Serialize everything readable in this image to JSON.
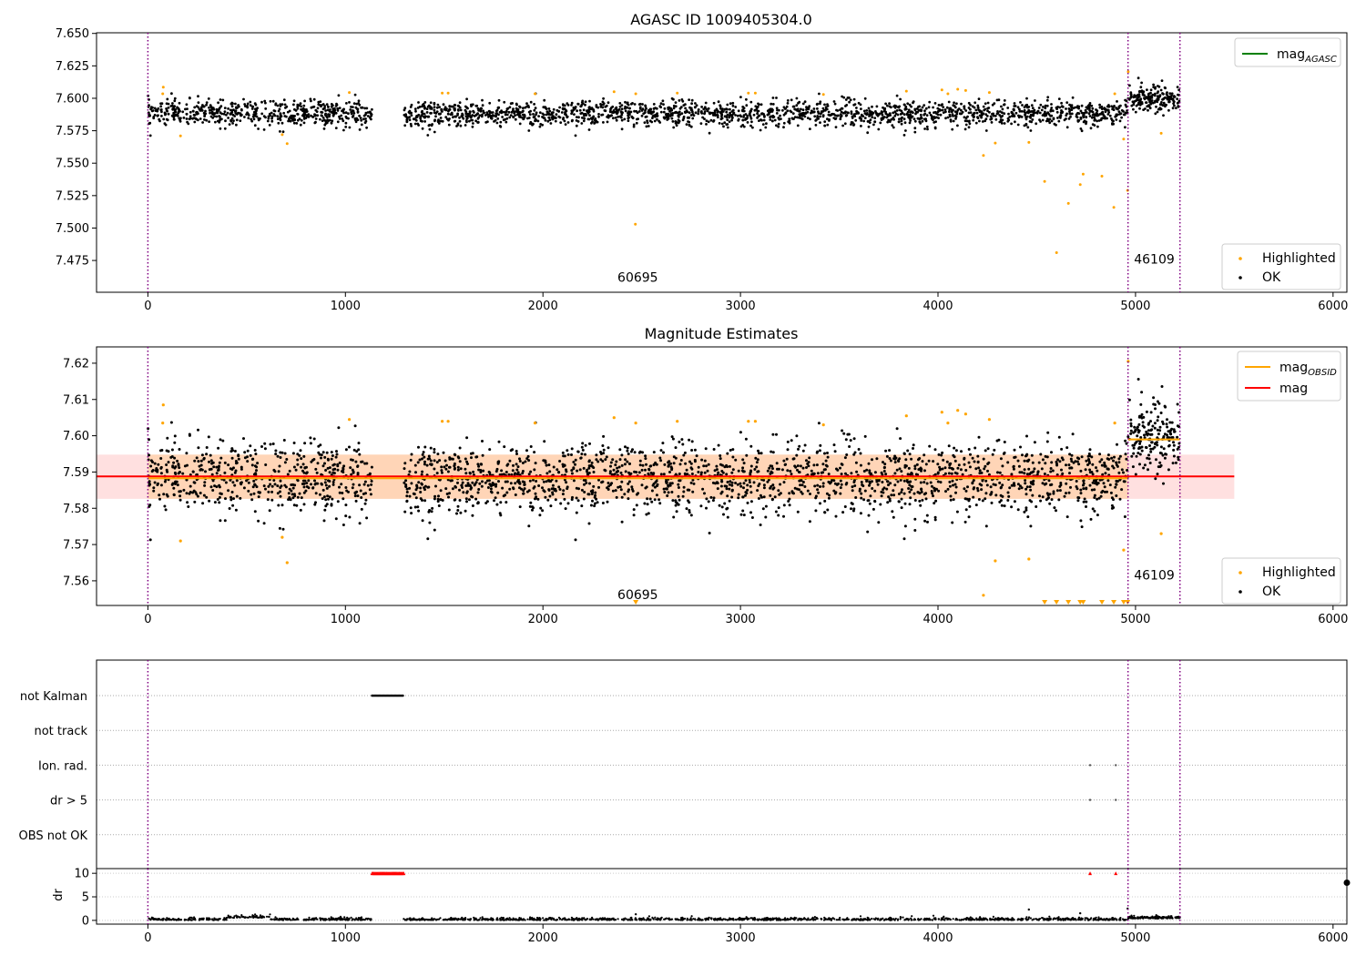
{
  "chart_data": [
    {
      "panel": "top",
      "type": "scatter",
      "title": "AGASC ID 1009405304.0",
      "xlim": [
        -260,
        6070
      ],
      "ylim": [
        7.4505,
        7.6505
      ],
      "xticks": [
        0,
        1000,
        2000,
        3000,
        4000,
        5000,
        6000
      ],
      "xtick_labels": [
        "0",
        "1000",
        "2000",
        "3000",
        "4000",
        "5000",
        "6000"
      ],
      "yticks": [
        7.475,
        7.5,
        7.525,
        7.55,
        7.575,
        7.6,
        7.625,
        7.65
      ],
      "ytick_labels": [
        "7.475",
        "7.500",
        "7.525",
        "7.550",
        "7.575",
        "7.600",
        "7.625",
        "7.650"
      ],
      "obsid_boundaries": [
        0,
        4962,
        5225
      ],
      "obsid_labels": [
        {
          "text": "60695",
          "x": 2480,
          "y": 7.4585
        },
        {
          "text": "46109",
          "x": 5095,
          "y": 7.4725
        }
      ],
      "line_legend": [
        {
          "label": "mag",
          "sub": "AGASC",
          "color": "#008000"
        }
      ],
      "point_legend": [
        {
          "label": "Highlighted",
          "color": "#FFA500"
        },
        {
          "label": "OK",
          "color": "#000000"
        }
      ],
      "ok_segments": [
        {
          "x_start": 0,
          "x_end": 1135,
          "mean": 7.5885,
          "spread": 0.013,
          "n": 560
        },
        {
          "x_start": 1295,
          "x_end": 4962,
          "mean": 7.588,
          "spread": 0.013,
          "n": 1850
        },
        {
          "x_start": 4962,
          "x_end": 5225,
          "mean": 7.6,
          "spread": 0.015,
          "n": 180
        }
      ],
      "highlighted_points": [
        [
          78,
          7.6085
        ],
        [
          75,
          7.6035
        ],
        [
          165,
          7.571
        ],
        [
          680,
          7.572
        ],
        [
          705,
          7.565
        ],
        [
          1020,
          7.6045
        ],
        [
          1490,
          7.604
        ],
        [
          1520,
          7.604
        ],
        [
          1960,
          7.6035
        ],
        [
          2360,
          7.605
        ],
        [
          2470,
          7.6035
        ],
        [
          2468,
          7.503
        ],
        [
          2680,
          7.604
        ],
        [
          3040,
          7.604
        ],
        [
          3075,
          7.604
        ],
        [
          3420,
          7.603
        ],
        [
          3840,
          7.6055
        ],
        [
          4020,
          7.6065
        ],
        [
          4050,
          7.6035
        ],
        [
          4100,
          7.607
        ],
        [
          4140,
          7.606
        ],
        [
          4230,
          7.556
        ],
        [
          4260,
          7.6045
        ],
        [
          4290,
          7.5655
        ],
        [
          4460,
          7.566
        ],
        [
          4540,
          7.536
        ],
        [
          4600,
          7.481
        ],
        [
          4660,
          7.519
        ],
        [
          4720,
          7.5335
        ],
        [
          4735,
          7.5415
        ],
        [
          4830,
          7.54
        ],
        [
          4890,
          7.516
        ],
        [
          4895,
          7.6035
        ],
        [
          4940,
          7.5685
        ],
        [
          4960,
          7.529
        ],
        [
          4963,
          7.6205
        ],
        [
          5130,
          7.573
        ]
      ]
    },
    {
      "panel": "middle",
      "type": "scatter",
      "title": "Magnitude Estimates",
      "xlim": [
        -260,
        6070
      ],
      "ylim": [
        7.5532,
        7.6245
      ],
      "xticks": [
        0,
        1000,
        2000,
        3000,
        4000,
        5000,
        6000
      ],
      "xtick_labels": [
        "0",
        "1000",
        "2000",
        "3000",
        "4000",
        "5000",
        "6000"
      ],
      "yticks": [
        7.56,
        7.57,
        7.58,
        7.59,
        7.6,
        7.61,
        7.62
      ],
      "ytick_labels": [
        "7.56",
        "7.57",
        "7.58",
        "7.59",
        "7.60",
        "7.61",
        "7.62"
      ],
      "obsid_boundaries": [
        0,
        4962,
        5225
      ],
      "obsid_labels": [
        {
          "text": "60695",
          "x": 2480,
          "y": 7.5549
        },
        {
          "text": "46109",
          "x": 5095,
          "y": 7.5604
        }
      ],
      "line_legend": [
        {
          "label": "mag",
          "sub": "OBSID",
          "color": "#FFA500"
        },
        {
          "label": "mag",
          "sub": "",
          "color": "#FF0000"
        }
      ],
      "point_legend": [
        {
          "label": "Highlighted",
          "color": "#FFA500"
        },
        {
          "label": "OK",
          "color": "#000000"
        }
      ],
      "mag": 7.5888,
      "mag_band": [
        7.5826,
        7.5948
      ],
      "mag_band_x": [
        -260,
        5500
      ],
      "obsid_mags": [
        {
          "x_start": 0,
          "x_end": 4962,
          "mag": 7.5883,
          "band": [
            7.5826,
            7.5948
          ]
        },
        {
          "x_start": 4962,
          "x_end": 5225,
          "mag": 7.599,
          "band": [
            7.5987,
            7.5993
          ]
        }
      ],
      "below_range_x": [
        2470,
        4540,
        4600,
        4660,
        4720,
        4735,
        4830,
        4890,
        4940,
        4960
      ]
    },
    {
      "panel": "flags",
      "type": "scatter",
      "xlim": [
        -260,
        6070
      ],
      "categories": [
        "not Kalman",
        "not track",
        "Ion. rad.",
        "dr > 5",
        "OBS not OK"
      ],
      "obsid_boundaries": [
        0,
        4962,
        5225
      ],
      "not_kalman_range": [
        1135,
        1295
      ],
      "ion_rad_x": [
        4770,
        4900
      ],
      "dr_gt5_x": [
        4770,
        4900
      ]
    },
    {
      "panel": "dr",
      "type": "scatter",
      "xlim": [
        -260,
        6070
      ],
      "ylim": [
        -0.8,
        11
      ],
      "ylabel": "dr",
      "yticks": [
        0,
        5,
        10
      ],
      "ytick_labels": [
        "0",
        "5",
        "10"
      ],
      "xticks": [
        0,
        1000,
        2000,
        3000,
        4000,
        5000,
        6000
      ],
      "xtick_labels": [
        "0",
        "1000",
        "2000",
        "3000",
        "4000",
        "5000",
        "6000"
      ],
      "obsid_boundaries": [
        0,
        4962,
        5225
      ],
      "clipped_range": [
        1135,
        1295
      ],
      "clipped_points": [
        4770,
        4900
      ],
      "outliers": [
        [
          2470,
          1.3
        ],
        [
          4460,
          2.3
        ],
        [
          4720,
          1.5
        ],
        [
          4960,
          2.5
        ]
      ],
      "edge_point": [
        6070,
        8.0
      ]
    }
  ]
}
